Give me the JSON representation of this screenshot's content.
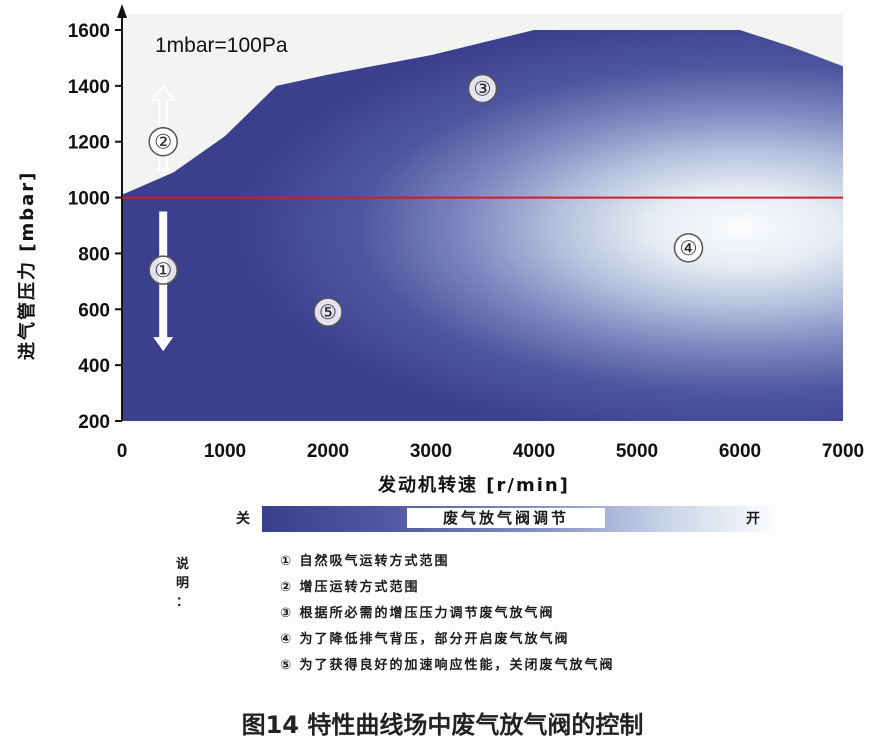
{
  "chart_data": {
    "type": "area",
    "title": "",
    "annotation": "1mbar=100Pa",
    "xlabel": "发动机转速 [r/min]",
    "ylabel": "进气管压力 [mbar]",
    "xlim": [
      0,
      7000
    ],
    "ylim": [
      200,
      1600
    ],
    "xticks": [
      "0",
      "1000",
      "2000",
      "3000",
      "4000",
      "5000",
      "6000",
      "7000"
    ],
    "yticks": [
      "200",
      "400",
      "600",
      "800",
      "1000",
      "1200",
      "1400",
      "1600"
    ],
    "upper_boundary": {
      "x": [
        0,
        500,
        1000,
        1500,
        2000,
        3000,
        4000,
        5000,
        6000,
        6500,
        7000
      ],
      "y": [
        1010,
        1090,
        1220,
        1400,
        1440,
        1510,
        1600,
        1600,
        1600,
        1540,
        1470
      ]
    },
    "reference_line": {
      "y": 1000,
      "color": "#cc1f2a"
    },
    "regions": [
      {
        "id": "①",
        "x": 400,
        "y": 740
      },
      {
        "id": "②",
        "x": 400,
        "y": 1200
      },
      {
        "id": "③",
        "x": 3500,
        "y": 1390
      },
      {
        "id": "④",
        "x": 5500,
        "y": 820
      },
      {
        "id": "⑤",
        "x": 2000,
        "y": 590
      }
    ],
    "arrows": [
      {
        "x": 400,
        "y_from": 1100,
        "y_to": 1400,
        "direction": "up"
      },
      {
        "x": 400,
        "y_from": 950,
        "y_to": 450,
        "direction": "down"
      }
    ],
    "colors": {
      "closed": "#3a3f8e",
      "open": "#f5f8fb",
      "plot_bg": "#f3f3f1"
    }
  },
  "legend": {
    "left_label": "关",
    "center_label": "废气放气阀调节",
    "right_label": "开"
  },
  "notes": {
    "title": "说 明 ：",
    "items": [
      "① 自然吸气运转方式范围",
      "② 增压运转方式范围",
      "③ 根据所必需的增压压力调节废气放气阀",
      "④ 为了降低排气背压，部分开启废气放气阀",
      "⑤ 为了获得良好的加速响应性能，关闭废气放气阀"
    ]
  },
  "caption": "图14 特性曲线场中废气放气阀的控制"
}
